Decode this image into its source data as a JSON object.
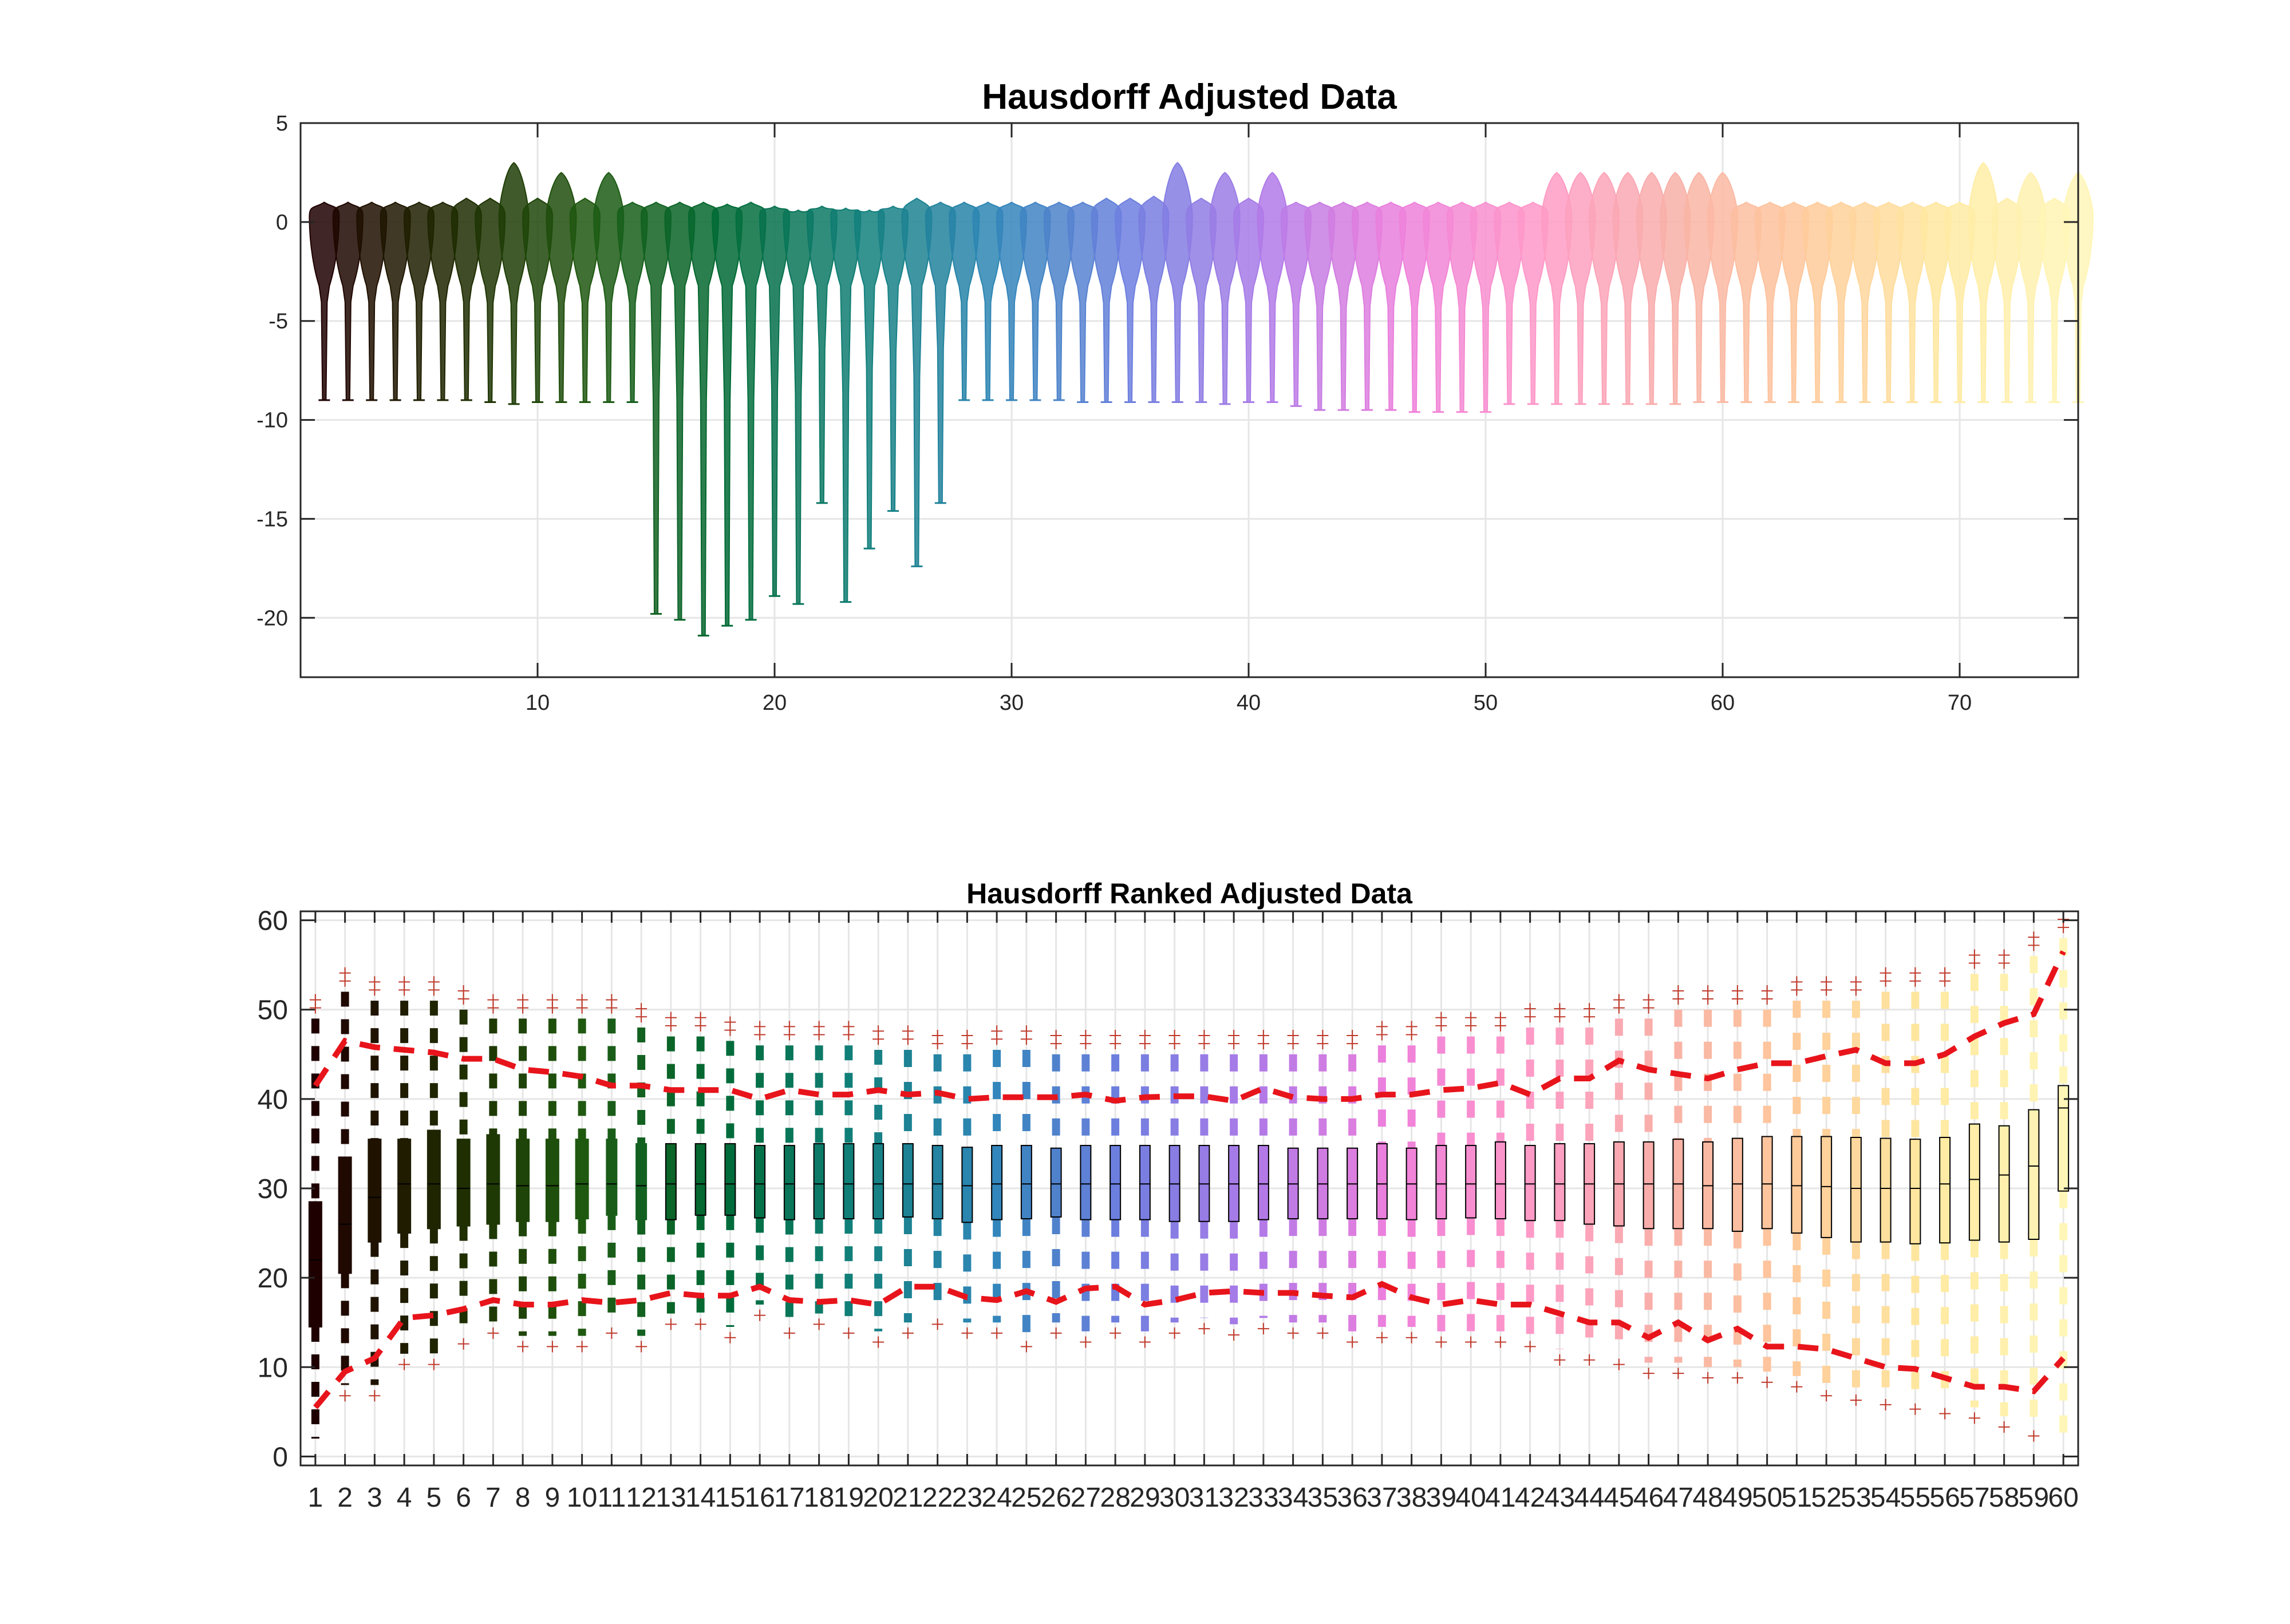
{
  "chart_data": [
    {
      "type": "violin",
      "title": "Hausdorff Adjusted Data",
      "xlabel": "",
      "ylabel": "",
      "xlim": [
        0,
        75
      ],
      "ylim": [
        -23,
        5
      ],
      "xticks": [
        10,
        20,
        30,
        40,
        50,
        60,
        70
      ],
      "yticks": [
        5,
        0,
        -5,
        -10,
        -15,
        -20
      ],
      "grid": true,
      "n_violins": 75,
      "series": {
        "x": [
          1,
          2,
          3,
          4,
          5,
          6,
          7,
          8,
          9,
          10,
          11,
          12,
          13,
          14,
          15,
          16,
          17,
          18,
          19,
          20,
          21,
          22,
          23,
          24,
          25,
          26,
          27,
          28,
          29,
          30,
          31,
          32,
          33,
          34,
          35,
          36,
          37,
          38,
          39,
          40,
          41,
          42,
          43,
          44,
          45,
          46,
          47,
          48,
          49,
          50,
          51,
          52,
          53,
          54,
          55,
          56,
          57,
          58,
          59,
          60,
          61,
          62,
          63,
          64,
          65,
          66,
          67,
          68,
          69,
          70,
          71,
          72,
          73,
          74,
          75
        ],
        "top": [
          1.0,
          1.0,
          1.0,
          1.0,
          1.0,
          1.0,
          1.2,
          1.2,
          3.0,
          1.2,
          2.5,
          1.2,
          2.5,
          1.0,
          1.0,
          1.0,
          1.0,
          0.9,
          1.0,
          0.8,
          0.6,
          0.8,
          0.7,
          0.6,
          0.8,
          1.2,
          1.0,
          1.0,
          1.0,
          1.0,
          1.0,
          1.0,
          1.0,
          1.2,
          1.2,
          1.3,
          3.0,
          1.2,
          2.5,
          1.2,
          2.5,
          1.0,
          1.0,
          1.0,
          1.0,
          1.0,
          1.0,
          1.0,
          1.0,
          1.0,
          1.0,
          1.0,
          2.5,
          2.5,
          2.5,
          2.5,
          2.5,
          2.5,
          2.5,
          2.5,
          1.0,
          1.0,
          1.0,
          1.0,
          1.0,
          1.0,
          1.0,
          1.0,
          1.0,
          1.0,
          3.0,
          1.2,
          2.5,
          1.2,
          2.5
        ],
        "min": [
          -9,
          -9,
          -9,
          -9,
          -9,
          -9,
          -9,
          -9.1,
          -9.2,
          -9.1,
          -9.1,
          -9.1,
          -9.1,
          -9.1,
          -19.8,
          -20.1,
          -20.9,
          -20.4,
          -20.1,
          -18.9,
          -19.3,
          -14.2,
          -19.2,
          -16.5,
          -14.6,
          -17.4,
          -14.2,
          -9,
          -9,
          -9,
          -9,
          -9,
          -9.1,
          -9.1,
          -9.1,
          -9.1,
          -9.1,
          -9.1,
          -9.2,
          -9.1,
          -9.1,
          -9.3,
          -9.5,
          -9.5,
          -9.5,
          -9.5,
          -9.6,
          -9.6,
          -9.6,
          -9.6,
          -9.2,
          -9.2,
          -9.2,
          -9.2,
          -9.2,
          -9.2,
          -9.2,
          -9.2,
          -9.1,
          -9.1,
          -9.1,
          -9.1,
          -9.1,
          -9.1,
          -9.1,
          -9.1,
          -9.1,
          -9.1,
          -9.1,
          -9.1,
          -9.1,
          -9.1,
          -9.1,
          -9.1,
          -9.1
        ]
      }
    },
    {
      "type": "boxplot",
      "title": "Hausdorff Ranked Adjusted Data",
      "xlabel": "",
      "ylabel": "",
      "categories": [
        "1",
        "2",
        "3",
        "4",
        "5",
        "6",
        "7",
        "8",
        "9",
        "10",
        "11",
        "12",
        "13",
        "14",
        "15",
        "16",
        "17",
        "18",
        "19",
        "20",
        "21",
        "22",
        "23",
        "24",
        "25",
        "26",
        "27",
        "28",
        "29",
        "30",
        "31",
        "32",
        "33",
        "34",
        "35",
        "36",
        "37",
        "38",
        "39",
        "40",
        "41",
        "42",
        "43",
        "44",
        "45",
        "46",
        "47",
        "48",
        "49",
        "50",
        "51",
        "52",
        "53",
        "54",
        "55",
        "56",
        "57",
        "58",
        "59",
        "60"
      ],
      "ylim": [
        -1,
        61
      ],
      "yticks": [
        0,
        10,
        20,
        30,
        40,
        50,
        60
      ],
      "grid": true,
      "q1": [
        14.5,
        20.5,
        24,
        25,
        25.5,
        25.8,
        26,
        26.3,
        26.3,
        26.6,
        27,
        26.5,
        26.5,
        27,
        27,
        26.7,
        26.5,
        26.6,
        26.6,
        26.6,
        26.8,
        26.6,
        26.2,
        26.5,
        26.6,
        26.8,
        26.5,
        26.5,
        26.5,
        26.3,
        26.3,
        26.3,
        26.5,
        26.6,
        26.6,
        26.6,
        26.6,
        26.5,
        26.6,
        26.7,
        26.6,
        26.4,
        26.4,
        26.0,
        25.8,
        25.5,
        25.5,
        25.5,
        25.2,
        25.5,
        25.0,
        24.5,
        24.0,
        24.0,
        23.8,
        23.9,
        24.2,
        24.0,
        24.3,
        29.7
      ],
      "median": [
        22,
        26,
        29,
        30.5,
        30.5,
        30,
        30.5,
        30.3,
        30.3,
        30.5,
        30.5,
        30.3,
        30.5,
        30.5,
        30.5,
        30.5,
        30.5,
        30.5,
        30.5,
        30.5,
        30.5,
        30.5,
        30.3,
        30.5,
        30.5,
        30.5,
        30.5,
        30.5,
        30.5,
        30.5,
        30.5,
        30.5,
        30.5,
        30.5,
        30.5,
        30.5,
        30.5,
        30.5,
        30.5,
        30.5,
        30.5,
        30.5,
        30.5,
        30.5,
        30.5,
        30.5,
        30.5,
        30.3,
        30.5,
        30.5,
        30.3,
        30.2,
        30.0,
        30.0,
        30.0,
        30.5,
        31.0,
        31.5,
        32.5,
        39.0
      ],
      "q3": [
        28.5,
        33.5,
        35.5,
        35.5,
        36.5,
        35.5,
        36,
        35.5,
        35.5,
        35.5,
        35.5,
        35,
        35,
        35,
        35,
        34.8,
        34.8,
        35,
        35,
        35,
        35,
        34.8,
        34.6,
        34.8,
        34.8,
        34.5,
        34.8,
        34.8,
        34.8,
        34.8,
        34.8,
        34.8,
        34.8,
        34.5,
        34.5,
        34.5,
        35,
        34.5,
        34.8,
        34.8,
        35.2,
        34.8,
        35,
        35,
        35.2,
        35.2,
        35.5,
        35.2,
        35.6,
        35.8,
        35.8,
        35.8,
        35.7,
        35.6,
        35.5,
        35.7,
        37.2,
        37.0,
        38.8,
        41.5
      ],
      "whisker_low": [
        2,
        8,
        8,
        11.5,
        11.5,
        13.8,
        15,
        13.5,
        13.5,
        13.5,
        15,
        13.5,
        16,
        16,
        14.5,
        17,
        15,
        16,
        15,
        14,
        15,
        16,
        15,
        15,
        13.5,
        15,
        14,
        15,
        14,
        15,
        15.5,
        14.8,
        15.5,
        15,
        15,
        14,
        14.5,
        14.5,
        14,
        14,
        14,
        13.5,
        12,
        12,
        11.5,
        10.5,
        10.5,
        10,
        10,
        9.5,
        9,
        8,
        7.5,
        7,
        6.5,
        6,
        5.5,
        4.5,
        3.5,
        1
      ],
      "whisker_high": [
        49,
        52,
        51,
        51,
        51,
        50,
        49,
        49,
        49,
        49,
        49,
        48,
        47,
        47,
        46.5,
        46,
        46,
        46,
        46,
        45.5,
        45.5,
        45,
        45,
        45.5,
        45.5,
        45,
        45,
        45,
        45,
        45,
        45,
        45,
        45,
        45,
        45,
        45,
        46,
        46,
        47,
        47,
        47,
        48,
        48,
        48,
        49,
        49,
        50,
        50,
        50,
        50,
        51,
        51,
        51,
        52,
        52,
        52,
        54,
        54,
        56,
        58
      ],
      "lower_band": [
        5.5,
        9.5,
        11,
        15.5,
        15.8,
        16.5,
        17.5,
        17,
        17,
        17.5,
        17.2,
        17.5,
        18.3,
        18,
        18,
        19,
        17.5,
        17.3,
        17.5,
        17,
        19,
        19,
        17.8,
        17.5,
        18.5,
        17.3,
        18.8,
        19,
        17,
        17.5,
        18.3,
        18.5,
        18.3,
        18.3,
        18,
        17.8,
        19.3,
        17.8,
        17,
        17.5,
        17,
        17,
        16,
        15,
        15,
        13.3,
        15,
        13,
        14.3,
        12.3,
        12.3,
        12,
        11,
        10,
        9.8,
        8.8,
        7.8,
        7.8,
        7.3,
        11
      ],
      "upper_band": [
        41.5,
        46.5,
        45.8,
        45.5,
        45.2,
        44.5,
        44.5,
        43.3,
        43,
        42.5,
        41.5,
        41.5,
        41,
        41,
        41,
        40,
        41,
        40.5,
        40.5,
        41,
        40.5,
        40.7,
        40,
        40.2,
        40.2,
        40.2,
        40.5,
        39.8,
        40.2,
        40.3,
        40.3,
        39.8,
        41.2,
        40.2,
        40,
        40,
        40.5,
        40.5,
        41,
        41.2,
        41.8,
        40.5,
        42.3,
        42.3,
        44.3,
        43.3,
        42.8,
        42.3,
        43.3,
        44,
        44,
        44.8,
        45.5,
        44,
        44,
        45,
        47,
        48.5,
        49.5,
        56.5
      ],
      "line_color": "#e8141b",
      "outlier_color": "#c0392b"
    }
  ],
  "palette": [
    "#1f0000",
    "#1f2a00",
    "#1f5a10",
    "#006a35",
    "#11807a",
    "#2f86b8",
    "#6f7fe0",
    "#b07ae8",
    "#ee7fdc",
    "#ff99c8",
    "#f8b0a8",
    "#ffc99a",
    "#ffe9a0",
    "#fff6b8"
  ]
}
